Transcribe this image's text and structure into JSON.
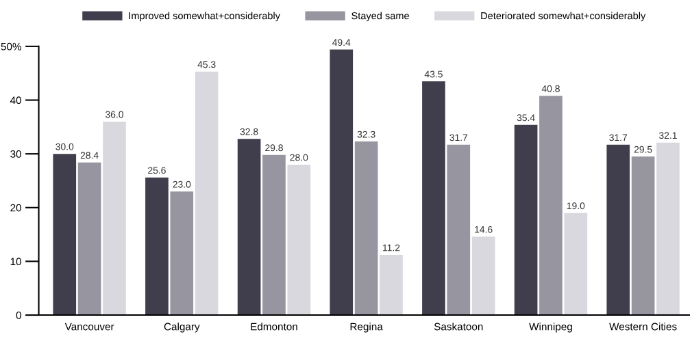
{
  "chart_data": {
    "type": "bar",
    "categories": [
      "Vancouver",
      "Calgary",
      "Edmonton",
      "Regina",
      "Saskatoon",
      "Winnipeg",
      "Western Cities"
    ],
    "series": [
      {
        "name": "Improved somewhat+considerably",
        "color": "#403e4c",
        "values": [
          30.0,
          25.6,
          32.8,
          49.4,
          43.5,
          35.4,
          31.7
        ],
        "value_labels": [
          "30.0",
          "25.6",
          "32.8",
          "49.4",
          "43.5",
          "35.4",
          "31.7"
        ]
      },
      {
        "name": "Stayed same",
        "color": "#9695a0",
        "values": [
          28.4,
          23.0,
          29.8,
          32.3,
          31.7,
          40.8,
          29.5
        ],
        "value_labels": [
          "28.4",
          "23.0",
          "29.8",
          "32.3",
          "31.7",
          "40.8",
          "29.5"
        ]
      },
      {
        "name": "Deteriorated somewhat+considerably",
        "color": "#d9d8de",
        "values": [
          36.0,
          45.3,
          28.0,
          11.2,
          14.6,
          19.0,
          32.1
        ],
        "value_labels": [
          "36.0",
          "45.3",
          "28.0",
          "11.2",
          "14.6",
          "19.0",
          "32.1"
        ]
      }
    ],
    "ylim": [
      0,
      50
    ],
    "yticks": [
      0,
      10,
      20,
      30,
      40,
      {
        "value": 50,
        "label": "50%"
      }
    ],
    "grid": false,
    "legend": "top"
  }
}
